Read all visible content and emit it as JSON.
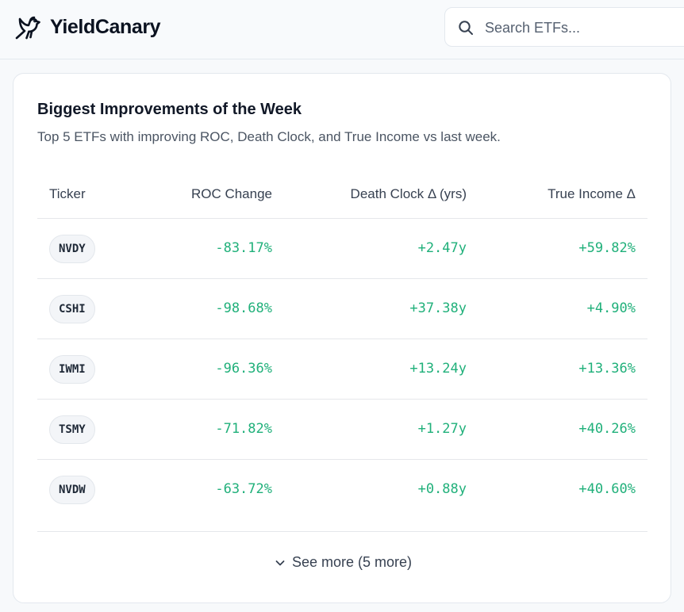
{
  "brand": {
    "name": "YieldCanary",
    "logo_icon": "canary-bird-icon"
  },
  "search": {
    "placeholder": "Search ETFs...",
    "value": "",
    "icon": "search-icon"
  },
  "card": {
    "title": "Biggest Improvements of the Week",
    "subtitle": "Top 5 ETFs with improving ROC, Death Clock, and True Income vs last week.",
    "columns": [
      "Ticker",
      "ROC Change",
      "Death Clock Δ (yrs)",
      "True Income Δ"
    ],
    "rows": [
      {
        "ticker": "NVDY",
        "roc_change": "-83.17%",
        "death_clock": "+2.47y",
        "true_income": "+59.82%"
      },
      {
        "ticker": "CSHI",
        "roc_change": "-98.68%",
        "death_clock": "+37.38y",
        "true_income": "+4.90%"
      },
      {
        "ticker": "IWMI",
        "roc_change": "-96.36%",
        "death_clock": "+13.24y",
        "true_income": "+13.36%"
      },
      {
        "ticker": "TSMY",
        "roc_change": "-71.82%",
        "death_clock": "+1.27y",
        "true_income": "+40.26%"
      },
      {
        "ticker": "NVDW",
        "roc_change": "-63.72%",
        "death_clock": "+0.88y",
        "true_income": "+40.60%"
      }
    ],
    "see_more_label": "See more (5 more)"
  },
  "colors": {
    "positive": "#20b07a",
    "background": "#f7f9fb",
    "card": "#ffffff",
    "text": "#0f172a"
  }
}
